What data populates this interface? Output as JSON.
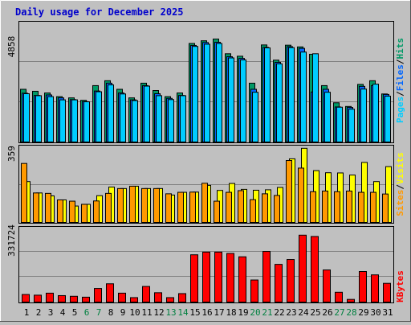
{
  "chart_data": {
    "type": "bar",
    "title": "Daily usage for December 2025",
    "categories": [
      "1",
      "2",
      "3",
      "4",
      "5",
      "6",
      "7",
      "8",
      "9",
      "10",
      "11",
      "12",
      "13",
      "14",
      "15",
      "16",
      "17",
      "18",
      "19",
      "20",
      "21",
      "22",
      "23",
      "24",
      "25",
      "26",
      "27",
      "28",
      "29",
      "30",
      "31"
    ],
    "weekend_days": [
      "6",
      "7",
      "13",
      "14",
      "20",
      "21",
      "27",
      "28"
    ],
    "panels": [
      {
        "id": "top",
        "max_label": "4858",
        "ymax": 4858,
        "legend": [
          "Pages",
          "/",
          "Files",
          "/",
          "Hits"
        ],
        "series": [
          {
            "name": "Hits",
            "color": "#009966",
            "values": [
              2150,
              2070,
              2000,
              1850,
              1800,
              1700,
              2300,
              2500,
              2150,
              1800,
              2400,
              2100,
              1850,
              2000,
              4020,
              4130,
              4200,
              3600,
              3500,
              2400,
              3960,
              3340,
              3950,
              3880,
              3580,
              2300,
              1600,
              1450,
              2350,
              2500,
              1960
            ]
          },
          {
            "name": "Files",
            "color": "#0066ff",
            "values": [
              1990,
              1900,
              1920,
              1800,
              1730,
              1650,
              2080,
              2400,
              2000,
              1720,
              2300,
              1970,
              1780,
              1900,
              3940,
              4060,
              4070,
              3480,
              3410,
              2150,
              3860,
              3250,
              3890,
              3820,
              2040,
              2150,
              1430,
              1410,
              2270,
              2300,
              1940
            ]
          },
          {
            "name": "Pages",
            "color": "#00ccff",
            "values": [
              1970,
              1890,
              1850,
              1720,
              1720,
              1640,
              2050,
              2330,
              1960,
              1690,
              2280,
              1890,
              1730,
              1890,
              3900,
              3990,
              4020,
              3430,
              3350,
              2030,
              3840,
              3190,
              3850,
              3670,
              3600,
              2030,
              1420,
              1340,
              2160,
              2360,
              1870
            ]
          }
        ]
      },
      {
        "id": "mid",
        "max_label": "359",
        "ymax": 359,
        "legend": [
          "Sites",
          "/",
          "Visits"
        ],
        "series": [
          {
            "name": "Visits",
            "color": "#ffff00",
            "values": [
              194,
              140,
              126,
              107,
              78,
              86,
              127,
              168,
              161,
              172,
              161,
              161,
              130,
              143,
              144,
              176,
              152,
              185,
              157,
              153,
              155,
              166,
              302,
              352,
              246,
              236,
              235,
              225,
              285,
              194,
              265
            ]
          },
          {
            "name": "Sites",
            "color": "#ff9900",
            "values": [
              280,
              140,
              138,
              107,
              101,
              86,
              102,
              138,
              161,
              172,
              161,
              161,
              136,
              143,
              144,
              186,
              101,
              143,
              151,
              108,
              136,
              128,
              294,
              258,
              146,
              149,
              146,
              149,
              143,
              143,
              135
            ]
          }
        ]
      },
      {
        "id": "bottom",
        "max_label": "331724",
        "ymax": 331724,
        "legend": [
          "KBytes"
        ],
        "series": [
          {
            "name": "KBytes",
            "color": "#ff0000",
            "values": [
              34000,
              31000,
              40000,
              29000,
              26000,
              22000,
              61000,
              82000,
              40000,
              20000,
              70000,
              42000,
              20000,
              38000,
              212000,
              224000,
              224000,
              218000,
              203000,
              99000,
              227000,
              169000,
              191000,
              300000,
              294000,
              144000,
              44000,
              12000,
              137000,
              122000,
              84000
            ]
          }
        ]
      }
    ]
  }
}
